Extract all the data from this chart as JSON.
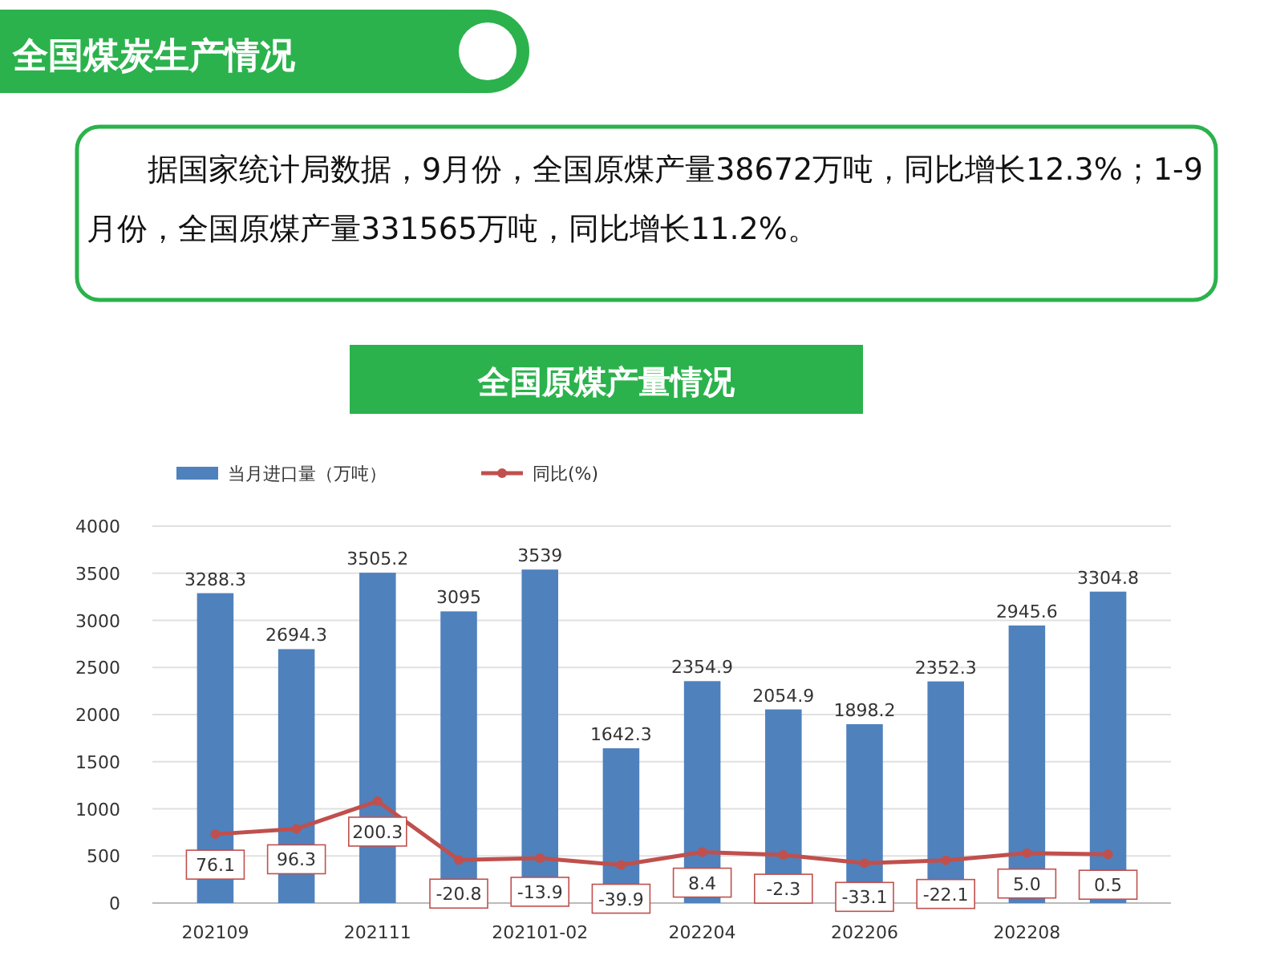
{
  "chart_data": {
    "type": "bar",
    "title": "全国原煤产量情况",
    "annotations": [
      "全国煤炭生产情况",
      "据国家统计局数据，9月份，全国原煤产量38672万吨，同比增长12.3%；1-9月份，全国原煤产量331565万吨，同比增长11.2%。"
    ],
    "categories": [
      "202109",
      null,
      "202111",
      null,
      "202101-02",
      null,
      "202204",
      null,
      "202206",
      null,
      "202208",
      null
    ],
    "series": [
      {
        "name": "当月进口量（万吨）",
        "color": "#4f81bd",
        "values": [
          3288.3,
          2694.3,
          3505.2,
          3095,
          3539,
          1642.3,
          2354.9,
          2054.9,
          1898.2,
          2352.3,
          2945.6,
          3304.8
        ]
      },
      {
        "name": "同比(%)",
        "type": "line",
        "axis": "y2",
        "color": "#c0504d",
        "values": [
          76.1,
          96.3,
          200.3,
          -20.8,
          -13.9,
          -39.9,
          8.4,
          -2.3,
          -33.1,
          -22.1,
          5.0,
          0.5
        ],
        "value_labels": [
          "76.1",
          "96.3",
          "200.3",
          "-20.8",
          "-13.9",
          "-39.9",
          "8.4",
          "-2.3",
          "-33.1",
          "-22.1",
          "5.0",
          "0.5"
        ]
      }
    ],
    "ylim": [
      0,
      4000
    ],
    "yticks": [
      0,
      500,
      1000,
      1500,
      2000,
      2500,
      3000,
      3500,
      4000
    ],
    "y2lim": [
      -183,
      1235
    ],
    "grid": "y",
    "legend": "top left",
    "marker": "circle",
    "data_labels": true
  }
}
